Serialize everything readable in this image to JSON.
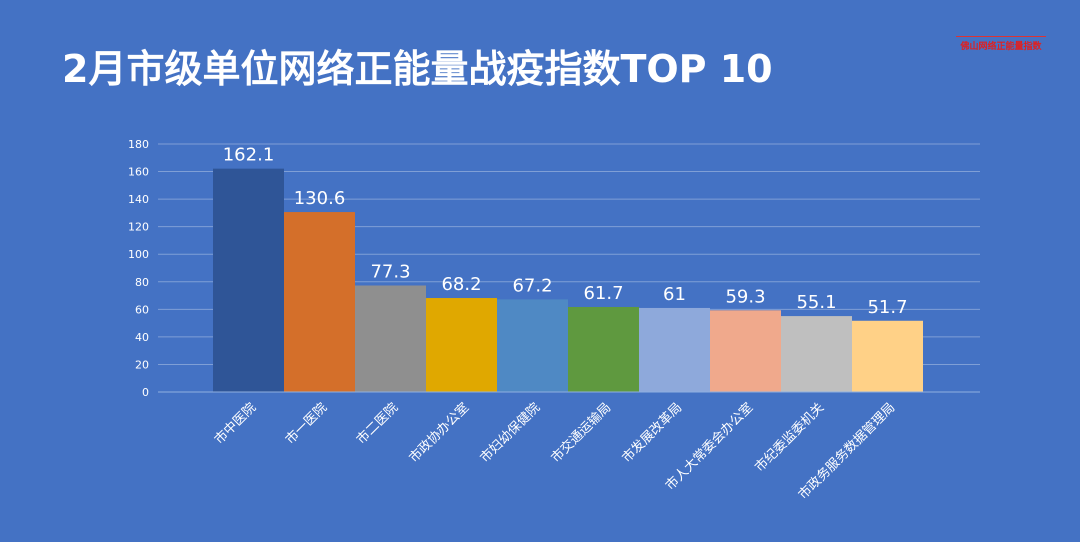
{
  "title": "2月市级单位网络正能量战疫指数TOP 10",
  "brand_text": "佛山网络正能量指数",
  "chart_data": {
    "type": "bar",
    "categories": [
      "市中医院",
      "市一医院",
      "市二医院",
      "市政协办公室",
      "市妇幼保健院",
      "市交通运输局",
      "市发展改革局",
      "市人大常委会办公室",
      "市纪委监委机关",
      "市政务服务数据管理局"
    ],
    "values": [
      162.1,
      130.6,
      77.3,
      68.2,
      67.2,
      61.7,
      61,
      59.3,
      55.1,
      51.7
    ],
    "value_labels": [
      "162.1",
      "130.6",
      "77.3",
      "68.2",
      "67.2",
      "61.7",
      "61",
      "59.3",
      "55.1",
      "51.7"
    ],
    "colors": [
      "#2f5597",
      "#d46f2a",
      "#8f8f8f",
      "#e0a800",
      "#4f89c4",
      "#5f993f",
      "#8ea9db",
      "#f0a98c",
      "#bfbfbf",
      "#ffd187"
    ],
    "ylim": [
      0,
      180
    ],
    "yticks": [
      0,
      20,
      40,
      60,
      80,
      100,
      120,
      140,
      160,
      180
    ],
    "grid": true,
    "xlabel": "",
    "ylabel": ""
  }
}
